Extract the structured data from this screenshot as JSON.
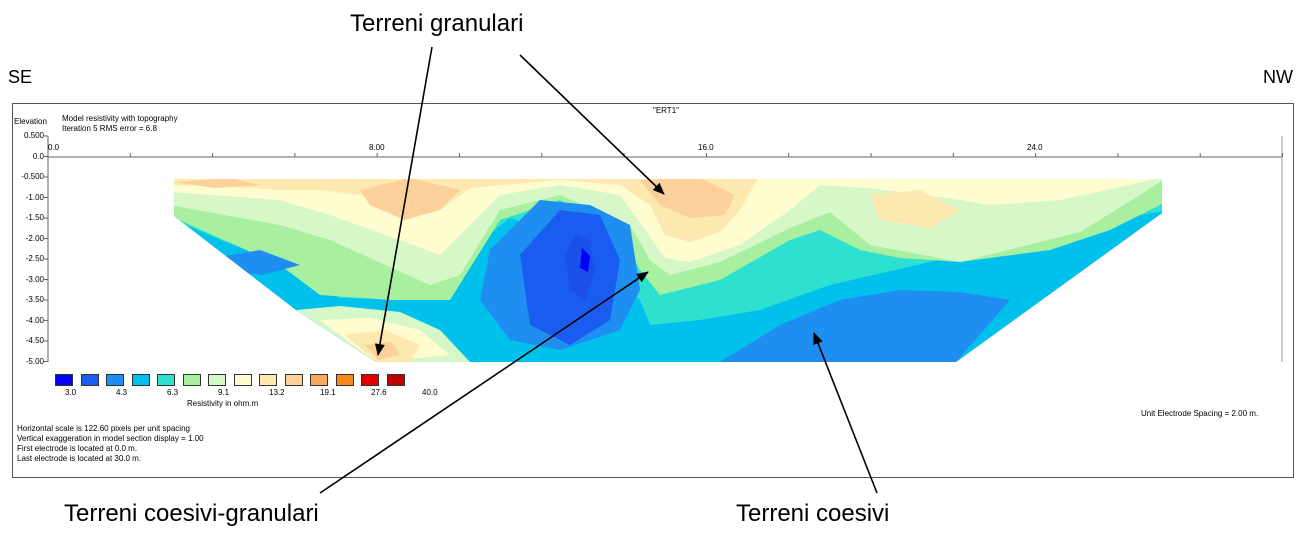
{
  "annotations": {
    "top": "Terreni granulari",
    "bottom_left": "Terreni coesivi-granulari",
    "bottom_right": "Terreni coesivi",
    "left_dir": "SE",
    "right_dir": "NW"
  },
  "section": {
    "title": "\"ERT1\"",
    "elevation_label": "Elevation",
    "subtitle_1": "Model resistivity with topography",
    "subtitle_2": "Iteration 5 RMS error = 6.8",
    "y_ticks": [
      "0.500",
      "0.0",
      "-0.500",
      "-1.00",
      "-1.50",
      "-2.00",
      "-2.50",
      "-3.00",
      "-3.50",
      "-4.00",
      "-4.50",
      "-5.00"
    ],
    "x_ticks": [
      "0.0",
      "8.00",
      "16.0",
      "24.0"
    ],
    "legend_title": "Resistivity in ohm.m",
    "legend_values": [
      "3.0",
      "4.3",
      "6.3",
      "9.1",
      "13.2",
      "19.1",
      "27.6",
      "40.0"
    ],
    "legend_colors": [
      "#0000ff",
      "#1a5cf0",
      "#1e8ff0",
      "#00c0ec",
      "#2de0d0",
      "#a8f0a0",
      "#d6f8c8",
      "#fffcd0",
      "#fde8b0",
      "#fbd09a",
      "#f9a860",
      "#f48c1c",
      "#e00000",
      "#c00000"
    ],
    "info": [
      "Horizontal scale is 122.60 pixels per unit spacing",
      "Vertical exaggeration in model section display = 1.00",
      "First electrode is located at  0.0  m.",
      "Last electrode is located at 30.0 m."
    ],
    "spacing": "Unit Electrode Spacing = 2.00 m."
  }
}
